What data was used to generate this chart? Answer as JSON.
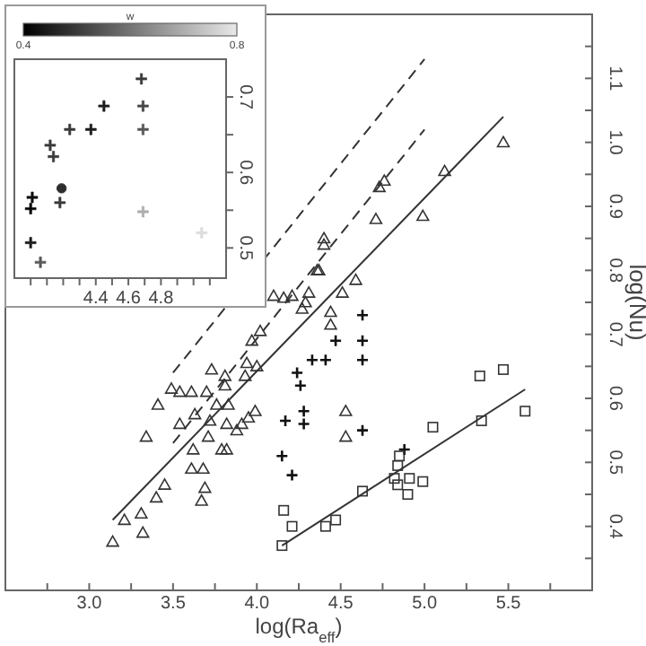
{
  "chart_data": [
    {
      "type": "scatter",
      "xlabel": "log(Ra$_{eff}$)",
      "ylabel": "log(Nu)",
      "xlim": [
        2.5,
        6.0
      ],
      "ylim": [
        0.3,
        1.2
      ],
      "xticks": [
        {
          "value": 2.75,
          "label": null
        },
        {
          "value": 3.0,
          "label": "3.0"
        },
        {
          "value": 3.25,
          "label": null
        },
        {
          "value": 3.5,
          "label": "3.5"
        },
        {
          "value": 3.75,
          "label": null
        },
        {
          "value": 4.0,
          "label": "4.0"
        },
        {
          "value": 4.25,
          "label": null
        },
        {
          "value": 4.5,
          "label": "4.5"
        },
        {
          "value": 4.75,
          "label": null
        },
        {
          "value": 5.0,
          "label": "5.0"
        },
        {
          "value": 5.25,
          "label": null
        },
        {
          "value": 5.5,
          "label": "5.5"
        },
        {
          "value": 5.75,
          "label": null
        }
      ],
      "yticks": [
        {
          "value": 0.35,
          "label": null
        },
        0.4,
        {
          "value": 0.45,
          "label": null
        },
        0.5,
        {
          "value": 0.55,
          "label": null
        },
        0.6,
        {
          "value": 0.65,
          "label": null
        },
        0.7,
        {
          "value": 0.75,
          "label": null
        },
        0.8,
        {
          "value": 0.85,
          "label": null
        },
        0.9,
        {
          "value": 0.95,
          "label": null
        },
        {
          "value": 1.0,
          "label": "1.0"
        },
        {
          "value": 1.05,
          "label": null
        },
        1.1,
        {
          "value": 1.15,
          "label": null
        }
      ],
      "grid": false,
      "series": [
        {
          "type": "scatter",
          "marker": "triangle",
          "color": "#333333",
          "x": [
            3.14,
            3.21,
            3.32,
            3.31,
            3.4,
            3.45,
            3.34,
            3.41,
            3.49,
            3.54,
            3.61,
            3.54,
            3.63,
            3.62,
            3.61,
            3.68,
            3.69,
            3.67,
            3.73,
            3.81,
            3.81,
            3.7,
            3.76,
            3.83,
            3.72,
            3.71,
            3.79,
            3.82,
            3.82,
            3.88,
            3.91,
            3.95,
            3.99,
            3.93,
            3.94,
            3.97,
            4.02,
            4.0,
            4.1,
            4.16,
            4.21,
            4.29,
            4.31,
            4.27,
            4.44,
            4.44,
            4.51,
            4.59,
            4.53,
            4.53,
            4.37,
            4.36,
            4.4,
            4.4,
            4.71,
            4.99,
            4.73,
            4.76,
            5.12,
            5.47
          ],
          "values": [
            0.376,
            0.41,
            0.39,
            0.42,
            0.445,
            0.465,
            0.54,
            0.59,
            0.615,
            0.61,
            0.61,
            0.56,
            0.575,
            0.52,
            0.49,
            0.49,
            0.46,
            0.44,
            0.645,
            0.635,
            0.62,
            0.61,
            0.59,
            0.59,
            0.565,
            0.54,
            0.52,
            0.52,
            0.56,
            0.55,
            0.56,
            0.57,
            0.58,
            0.635,
            0.655,
            0.69,
            0.705,
            0.65,
            0.76,
            0.757,
            0.76,
            0.75,
            0.765,
            0.74,
            0.735,
            0.715,
            0.765,
            0.785,
            0.58,
            0.54,
            0.8,
            0.8,
            0.85,
            0.84,
            0.88,
            0.885,
            0.93,
            0.94,
            0.955,
            1.0
          ]
        },
        {
          "type": "scatter",
          "marker": "cross",
          "color": "#111111",
          "x": [
            4.63,
            4.47,
            4.63,
            4.33,
            4.41,
            4.63,
            4.24,
            4.26,
            4.28,
            4.17,
            4.28,
            4.63,
            4.15,
            4.21,
            4.88
          ],
          "values": [
            0.73,
            0.69,
            0.69,
            0.66,
            0.66,
            0.66,
            0.64,
            0.62,
            0.58,
            0.565,
            0.56,
            0.55,
            0.51,
            0.48,
            0.52
          ]
        },
        {
          "type": "scatter",
          "marker": "square",
          "color": "#333333",
          "x": [
            4.16,
            4.21,
            4.15,
            4.41,
            4.47,
            4.63,
            4.85,
            4.84,
            4.82,
            4.84,
            4.91,
            4.9,
            4.99,
            5.05,
            5.33,
            5.47,
            5.34,
            5.6
          ],
          "values": [
            0.425,
            0.4,
            0.37,
            0.4,
            0.41,
            0.455,
            0.51,
            0.495,
            0.475,
            0.465,
            0.475,
            0.45,
            0.47,
            0.555,
            0.635,
            0.645,
            0.565,
            0.58
          ]
        },
        {
          "type": "line",
          "line_style": "solid",
          "color": "#333333",
          "x": [
            3.14,
            5.47
          ],
          "values": [
            0.41,
            1.04
          ]
        },
        {
          "type": "line",
          "line_style": "dashed",
          "color": "#333333",
          "x": [
            3.5,
            5.0
          ],
          "values": [
            0.64,
            1.13
          ]
        },
        {
          "type": "line",
          "line_style": "dashed",
          "color": "#333333",
          "x": [
            3.5,
            5.0
          ],
          "values": [
            0.53,
            1.02
          ]
        },
        {
          "type": "line",
          "line_style": "solid",
          "color": "#333333",
          "x": [
            4.15,
            5.6
          ],
          "values": [
            0.37,
            0.614
          ]
        }
      ]
    },
    {
      "type": "scatter",
      "xlim": [
        3.9,
        5.2
      ],
      "ylim": [
        0.46,
        0.75
      ],
      "clabel": "w",
      "clim": [
        0.4,
        0.8
      ],
      "cticks": [
        0.4,
        0.8
      ],
      "xticks": [
        {
          "value": 4.0,
          "label": null
        },
        {
          "value": 4.1,
          "label": null
        },
        {
          "value": 4.2,
          "label": null
        },
        {
          "value": 4.3,
          "label": null
        },
        4.4,
        {
          "value": 4.5,
          "label": null
        },
        4.6,
        {
          "value": 4.7,
          "label": null
        },
        4.8,
        {
          "value": 4.9,
          "label": null
        },
        {
          "value": 5.0,
          "label": null
        },
        {
          "value": 5.1,
          "label": null
        }
      ],
      "yticks": [
        0.5,
        {
          "value": 0.55,
          "label": null
        },
        0.6,
        {
          "value": 0.65,
          "label": null
        },
        0.7
      ],
      "grid": false,
      "series": [
        {
          "type": "scatter",
          "marker": "cross",
          "colors": [
            "#3a3a3a",
            "#1d1d1d",
            "#464646",
            "#3a3a3a",
            "#1d1d1d",
            "#575757",
            "#3a3a3a",
            "#3a3a3a",
            "#3a3a3a",
            "#aeaeae",
            "#dcdcdc",
            "#0c0c0c",
            "#000000",
            "#1d1d1d",
            "#575757"
          ],
          "x": [
            4.68,
            4.45,
            4.69,
            4.24,
            4.37,
            4.69,
            4.12,
            4.14,
            4.18,
            4.69,
            5.05,
            4.01,
            4.0,
            4.0,
            4.06
          ],
          "values": [
            0.724,
            0.688,
            0.688,
            0.657,
            0.657,
            0.657,
            0.636,
            0.621,
            0.56,
            0.548,
            0.52,
            0.567,
            0.552,
            0.507,
            0.481
          ],
          "cvalues": [
            0.5,
            0.45,
            0.52,
            0.5,
            0.45,
            0.55,
            0.5,
            0.5,
            0.5,
            0.7,
            0.78,
            0.42,
            0.4,
            0.45,
            0.55
          ]
        },
        {
          "type": "scatter",
          "marker": "circle",
          "color": "#2e2e2e",
          "x": [
            4.19
          ],
          "values": [
            0.579
          ],
          "cvalues": [
            0.48
          ]
        }
      ]
    }
  ]
}
